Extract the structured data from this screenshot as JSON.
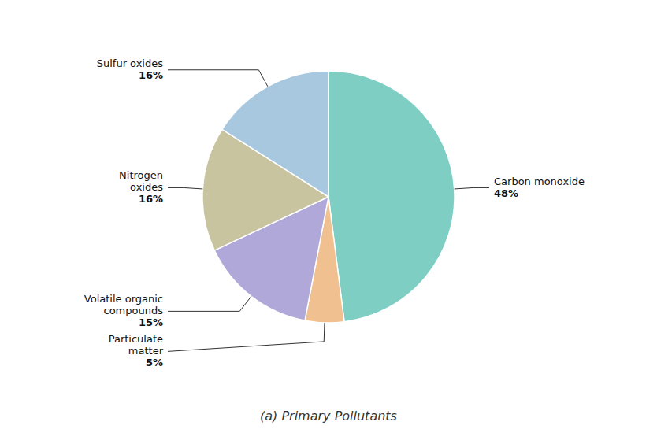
{
  "chart_data": {
    "type": "pie",
    "title": "(a) Primary Pollutants",
    "categories": [
      "Carbon monoxide",
      "Particulate\nmatter",
      "Volatile organic\ncompounds",
      "Nitrogen\noxides",
      "Sulfur oxides"
    ],
    "values": [
      48,
      5,
      15,
      16,
      16
    ],
    "value_labels": [
      "48%",
      "5%",
      "15%",
      "16%",
      "16%"
    ],
    "data_labels": true,
    "colors": [
      "#7ECEC4",
      "#F0C090",
      "#B0A8D8",
      "#C8C4A0",
      "#A8C8E0"
    ]
  }
}
